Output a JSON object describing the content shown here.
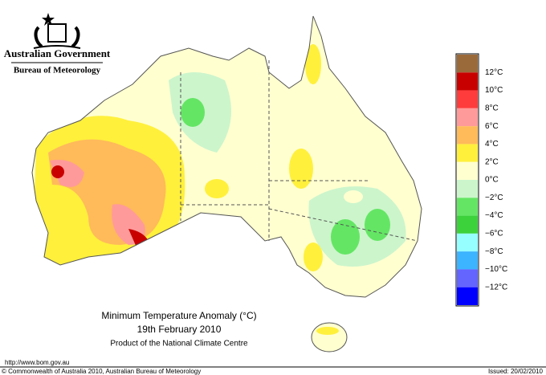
{
  "header": {
    "title": "Australian Government",
    "subtitle": "Bureau of Meteorology"
  },
  "map": {
    "title": "Minimum Temperature Anomaly (°C)",
    "date": "19th February 2010",
    "product": "Product of the National Climate Centre"
  },
  "legend": {
    "colors": [
      "#9b6a3a",
      "#c80000",
      "#ff3c3c",
      "#ff9a9a",
      "#ffba5a",
      "#fff03c",
      "#ffffd0",
      "#ccf5cc",
      "#64e664",
      "#3cd23c",
      "#96ffff",
      "#3cb4ff",
      "#6464ff",
      "#0000ff"
    ],
    "labels": [
      "12°C",
      "10°C",
      "8°C",
      "6°C",
      "4°C",
      "2°C",
      "0°C",
      "−2°C",
      "−4°C",
      "−6°C",
      "−8°C",
      "−10°C",
      "−12°C"
    ]
  },
  "footer": {
    "url": "http://www.bom.gov.au",
    "copyright": "© Commonwealth of Australia 2010, Australian Bureau of Meteorology",
    "issued": "Issued: 20/02/2010"
  }
}
